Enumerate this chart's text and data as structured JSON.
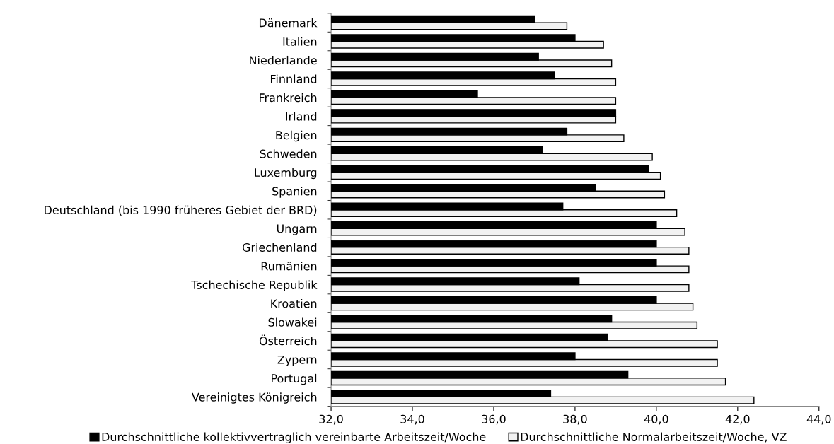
{
  "chart_data": {
    "type": "bar",
    "orientation": "horizontal",
    "categories": [
      "Dänemark",
      "Italien",
      "Niederlande",
      "Finnland",
      "Frankreich",
      "Irland",
      "Belgien",
      "Schweden",
      "Luxemburg",
      "Spanien",
      "Deutschland (bis 1990 früheres Gebiet der BRD)",
      "Ungarn",
      "Griechenland",
      "Rumänien",
      "Tschechische Republik",
      "Kroatien",
      "Slowakei",
      "Österreich",
      "Zypern",
      "Portugal",
      "Vereinigtes Königreich"
    ],
    "series": [
      {
        "name": "Durchschnittliche kollektivvertraglich vereinbarte Arbeitszeit/Woche",
        "color": "#000000",
        "values": [
          37.0,
          38.0,
          37.1,
          37.5,
          35.6,
          39.0,
          37.8,
          37.2,
          39.8,
          38.5,
          37.7,
          40.0,
          40.0,
          40.0,
          38.1,
          40.0,
          38.9,
          38.8,
          38.0,
          39.3,
          37.4
        ]
      },
      {
        "name": "Durchschnittliche Normalarbeitszeit/Woche, VZ",
        "color": "#f2f2f2",
        "values": [
          37.8,
          38.7,
          38.9,
          39.0,
          39.0,
          39.0,
          39.2,
          39.9,
          40.1,
          40.2,
          40.5,
          40.7,
          40.8,
          40.8,
          40.8,
          40.9,
          41.0,
          41.5,
          41.5,
          41.7,
          42.4
        ]
      }
    ],
    "xlim": [
      32,
      44
    ],
    "xticks": [
      {
        "value": 32,
        "label": "32,0"
      },
      {
        "value": 34,
        "label": "34,0"
      },
      {
        "value": 36,
        "label": "36,0"
      },
      {
        "value": 38,
        "label": "38,0"
      },
      {
        "value": 40,
        "label": "40,0"
      },
      {
        "value": 42,
        "label": "42,0"
      },
      {
        "value": 44,
        "label": "44,0"
      }
    ],
    "grid": false,
    "legend": "bottom"
  }
}
